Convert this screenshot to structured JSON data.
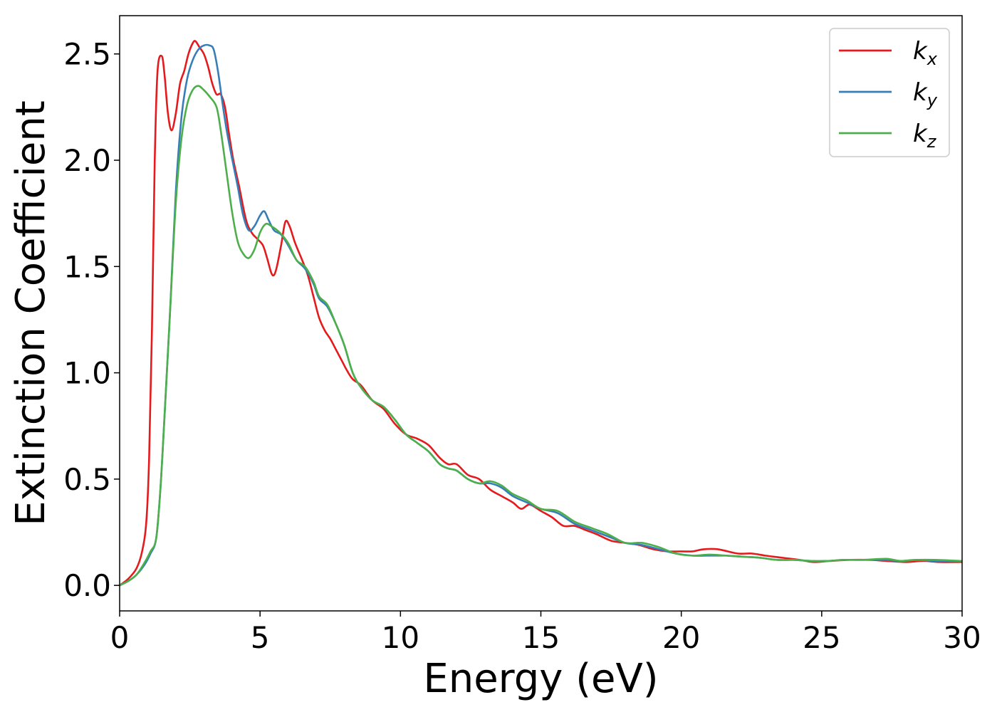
{
  "chart_data": {
    "type": "line",
    "title": "",
    "xlabel": "Energy (eV)",
    "ylabel": "Extinction Coefficient",
    "xlim": [
      0,
      30
    ],
    "ylim": [
      -0.12,
      2.68
    ],
    "xticks": [
      0,
      5,
      10,
      15,
      20,
      25,
      30
    ],
    "xtick_labels": [
      "0",
      "5",
      "10",
      "15",
      "20",
      "25",
      "30"
    ],
    "yticks": [
      0.0,
      0.5,
      1.0,
      1.5,
      2.0,
      2.5
    ],
    "ytick_labels": [
      "0.0",
      "0.5",
      "1.0",
      "1.5",
      "2.0",
      "2.5"
    ],
    "grid": false,
    "legend_position": "top-right",
    "series": [
      {
        "name": "k_x",
        "label_main": "k",
        "label_sub": "x",
        "color": "#e41a1c",
        "points": [
          [
            0,
            0
          ],
          [
            0.3,
            0.03
          ],
          [
            0.6,
            0.08
          ],
          [
            0.8,
            0.16
          ],
          [
            0.95,
            0.3
          ],
          [
            1.05,
            0.6
          ],
          [
            1.15,
            1.2
          ],
          [
            1.25,
            2.0
          ],
          [
            1.35,
            2.42
          ],
          [
            1.5,
            2.49
          ],
          [
            1.6,
            2.4
          ],
          [
            1.72,
            2.22
          ],
          [
            1.85,
            2.14
          ],
          [
            2.0,
            2.22
          ],
          [
            2.15,
            2.36
          ],
          [
            2.3,
            2.42
          ],
          [
            2.45,
            2.5
          ],
          [
            2.6,
            2.55
          ],
          [
            2.7,
            2.56
          ],
          [
            2.85,
            2.53
          ],
          [
            3.0,
            2.5
          ],
          [
            3.15,
            2.44
          ],
          [
            3.3,
            2.36
          ],
          [
            3.45,
            2.31
          ],
          [
            3.6,
            2.31
          ],
          [
            3.75,
            2.25
          ],
          [
            3.9,
            2.12
          ],
          [
            4.05,
            2.0
          ],
          [
            4.25,
            1.88
          ],
          [
            4.5,
            1.72
          ],
          [
            4.7,
            1.66
          ],
          [
            4.9,
            1.63
          ],
          [
            5.1,
            1.6
          ],
          [
            5.25,
            1.54
          ],
          [
            5.4,
            1.47
          ],
          [
            5.5,
            1.46
          ],
          [
            5.6,
            1.5
          ],
          [
            5.75,
            1.6
          ],
          [
            5.9,
            1.71
          ],
          [
            6.05,
            1.69
          ],
          [
            6.25,
            1.61
          ],
          [
            6.5,
            1.53
          ],
          [
            6.7,
            1.46
          ],
          [
            6.9,
            1.36
          ],
          [
            7.1,
            1.26
          ],
          [
            7.3,
            1.2
          ],
          [
            7.5,
            1.16
          ],
          [
            7.7,
            1.11
          ],
          [
            7.9,
            1.06
          ],
          [
            8.1,
            1.01
          ],
          [
            8.3,
            0.97
          ],
          [
            8.6,
            0.94
          ],
          [
            9.0,
            0.87
          ],
          [
            9.4,
            0.83
          ],
          [
            9.8,
            0.76
          ],
          [
            10.2,
            0.71
          ],
          [
            10.6,
            0.69
          ],
          [
            11.0,
            0.66
          ],
          [
            11.4,
            0.6
          ],
          [
            11.7,
            0.57
          ],
          [
            12.0,
            0.57
          ],
          [
            12.4,
            0.52
          ],
          [
            12.8,
            0.5
          ],
          [
            13.2,
            0.45
          ],
          [
            13.6,
            0.42
          ],
          [
            14.0,
            0.39
          ],
          [
            14.3,
            0.36
          ],
          [
            14.6,
            0.38
          ],
          [
            15.0,
            0.35
          ],
          [
            15.4,
            0.32
          ],
          [
            15.8,
            0.28
          ],
          [
            16.2,
            0.28
          ],
          [
            16.6,
            0.26
          ],
          [
            17.0,
            0.24
          ],
          [
            17.5,
            0.21
          ],
          [
            18.0,
            0.2
          ],
          [
            18.5,
            0.19
          ],
          [
            19.0,
            0.17
          ],
          [
            19.5,
            0.16
          ],
          [
            20.0,
            0.16
          ],
          [
            20.4,
            0.16
          ],
          [
            20.8,
            0.17
          ],
          [
            21.3,
            0.17
          ],
          [
            22.0,
            0.15
          ],
          [
            22.5,
            0.15
          ],
          [
            23.0,
            0.14
          ],
          [
            23.6,
            0.13
          ],
          [
            24.2,
            0.12
          ],
          [
            24.7,
            0.11
          ],
          [
            25.3,
            0.115
          ],
          [
            26.0,
            0.12
          ],
          [
            26.7,
            0.12
          ],
          [
            27.3,
            0.115
          ],
          [
            28.0,
            0.11
          ],
          [
            28.6,
            0.115
          ],
          [
            29.2,
            0.11
          ],
          [
            30.0,
            0.11
          ]
        ]
      },
      {
        "name": "k_y",
        "label_main": "k",
        "label_sub": "y",
        "color": "#377eb8",
        "points": [
          [
            0,
            0
          ],
          [
            0.3,
            0.02
          ],
          [
            0.6,
            0.05
          ],
          [
            0.9,
            0.1
          ],
          [
            1.1,
            0.15
          ],
          [
            1.3,
            0.22
          ],
          [
            1.45,
            0.45
          ],
          [
            1.6,
            0.8
          ],
          [
            1.8,
            1.3
          ],
          [
            2.0,
            1.85
          ],
          [
            2.2,
            2.2
          ],
          [
            2.4,
            2.38
          ],
          [
            2.6,
            2.47
          ],
          [
            2.8,
            2.52
          ],
          [
            3.0,
            2.54
          ],
          [
            3.2,
            2.54
          ],
          [
            3.35,
            2.52
          ],
          [
            3.5,
            2.42
          ],
          [
            3.65,
            2.28
          ],
          [
            3.8,
            2.15
          ],
          [
            4.0,
            2.01
          ],
          [
            4.2,
            1.88
          ],
          [
            4.4,
            1.74
          ],
          [
            4.6,
            1.67
          ],
          [
            4.8,
            1.69
          ],
          [
            5.0,
            1.74
          ],
          [
            5.15,
            1.76
          ],
          [
            5.3,
            1.72
          ],
          [
            5.5,
            1.67
          ],
          [
            5.75,
            1.65
          ],
          [
            6.0,
            1.6
          ],
          [
            6.3,
            1.53
          ],
          [
            6.6,
            1.49
          ],
          [
            6.9,
            1.42
          ],
          [
            7.1,
            1.35
          ],
          [
            7.4,
            1.31
          ],
          [
            7.7,
            1.23
          ],
          [
            8.0,
            1.13
          ],
          [
            8.3,
            1.0
          ],
          [
            8.6,
            0.93
          ],
          [
            9.0,
            0.87
          ],
          [
            9.4,
            0.84
          ],
          [
            9.8,
            0.78
          ],
          [
            10.2,
            0.71
          ],
          [
            10.6,
            0.67
          ],
          [
            11.0,
            0.63
          ],
          [
            11.4,
            0.57
          ],
          [
            11.7,
            0.55
          ],
          [
            12.0,
            0.54
          ],
          [
            12.4,
            0.5
          ],
          [
            12.8,
            0.48
          ],
          [
            13.2,
            0.48
          ],
          [
            13.6,
            0.46
          ],
          [
            14.0,
            0.42
          ],
          [
            14.5,
            0.39
          ],
          [
            15.0,
            0.36
          ],
          [
            15.6,
            0.34
          ],
          [
            16.2,
            0.29
          ],
          [
            16.8,
            0.26
          ],
          [
            17.4,
            0.23
          ],
          [
            18.0,
            0.2
          ],
          [
            18.6,
            0.19
          ],
          [
            19.2,
            0.17
          ],
          [
            19.8,
            0.15
          ],
          [
            20.4,
            0.14
          ],
          [
            21.0,
            0.14
          ],
          [
            21.6,
            0.14
          ],
          [
            22.2,
            0.135
          ],
          [
            22.8,
            0.13
          ],
          [
            23.4,
            0.12
          ],
          [
            24.0,
            0.12
          ],
          [
            24.6,
            0.115
          ],
          [
            25.2,
            0.115
          ],
          [
            25.8,
            0.12
          ],
          [
            26.5,
            0.12
          ],
          [
            27.2,
            0.12
          ],
          [
            27.8,
            0.115
          ],
          [
            28.4,
            0.12
          ],
          [
            29.0,
            0.115
          ],
          [
            30.0,
            0.115
          ]
        ]
      },
      {
        "name": "k_z",
        "label_main": "k",
        "label_sub": "z",
        "color": "#4daf4a",
        "points": [
          [
            0,
            0
          ],
          [
            0.3,
            0.02
          ],
          [
            0.6,
            0.05
          ],
          [
            0.9,
            0.11
          ],
          [
            1.1,
            0.16
          ],
          [
            1.3,
            0.22
          ],
          [
            1.45,
            0.45
          ],
          [
            1.6,
            0.8
          ],
          [
            1.8,
            1.3
          ],
          [
            2.0,
            1.8
          ],
          [
            2.2,
            2.1
          ],
          [
            2.4,
            2.26
          ],
          [
            2.6,
            2.33
          ],
          [
            2.8,
            2.35
          ],
          [
            3.0,
            2.33
          ],
          [
            3.2,
            2.3
          ],
          [
            3.45,
            2.25
          ],
          [
            3.6,
            2.14
          ],
          [
            3.8,
            1.95
          ],
          [
            4.0,
            1.76
          ],
          [
            4.2,
            1.62
          ],
          [
            4.4,
            1.56
          ],
          [
            4.6,
            1.54
          ],
          [
            4.8,
            1.58
          ],
          [
            5.0,
            1.66
          ],
          [
            5.2,
            1.7
          ],
          [
            5.4,
            1.69
          ],
          [
            5.7,
            1.66
          ],
          [
            6.0,
            1.61
          ],
          [
            6.3,
            1.53
          ],
          [
            6.6,
            1.5
          ],
          [
            6.9,
            1.43
          ],
          [
            7.1,
            1.36
          ],
          [
            7.4,
            1.32
          ],
          [
            7.7,
            1.23
          ],
          [
            8.0,
            1.13
          ],
          [
            8.3,
            1.0
          ],
          [
            8.6,
            0.93
          ],
          [
            9.0,
            0.87
          ],
          [
            9.4,
            0.84
          ],
          [
            9.8,
            0.78
          ],
          [
            10.2,
            0.71
          ],
          [
            10.6,
            0.67
          ],
          [
            11.0,
            0.63
          ],
          [
            11.4,
            0.57
          ],
          [
            11.7,
            0.55
          ],
          [
            12.0,
            0.54
          ],
          [
            12.4,
            0.5
          ],
          [
            12.8,
            0.48
          ],
          [
            13.2,
            0.49
          ],
          [
            13.6,
            0.47
          ],
          [
            14.0,
            0.43
          ],
          [
            14.5,
            0.4
          ],
          [
            15.0,
            0.36
          ],
          [
            15.6,
            0.35
          ],
          [
            16.2,
            0.3
          ],
          [
            16.8,
            0.27
          ],
          [
            17.4,
            0.24
          ],
          [
            18.0,
            0.2
          ],
          [
            18.6,
            0.2
          ],
          [
            19.2,
            0.18
          ],
          [
            19.8,
            0.15
          ],
          [
            20.4,
            0.14
          ],
          [
            21.0,
            0.145
          ],
          [
            21.6,
            0.14
          ],
          [
            22.2,
            0.135
          ],
          [
            22.8,
            0.13
          ],
          [
            23.4,
            0.12
          ],
          [
            24.0,
            0.12
          ],
          [
            24.6,
            0.115
          ],
          [
            25.2,
            0.115
          ],
          [
            25.8,
            0.12
          ],
          [
            26.5,
            0.12
          ],
          [
            27.3,
            0.125
          ],
          [
            27.8,
            0.115
          ],
          [
            28.4,
            0.12
          ],
          [
            29.0,
            0.12
          ],
          [
            30.0,
            0.115
          ]
        ]
      }
    ]
  }
}
